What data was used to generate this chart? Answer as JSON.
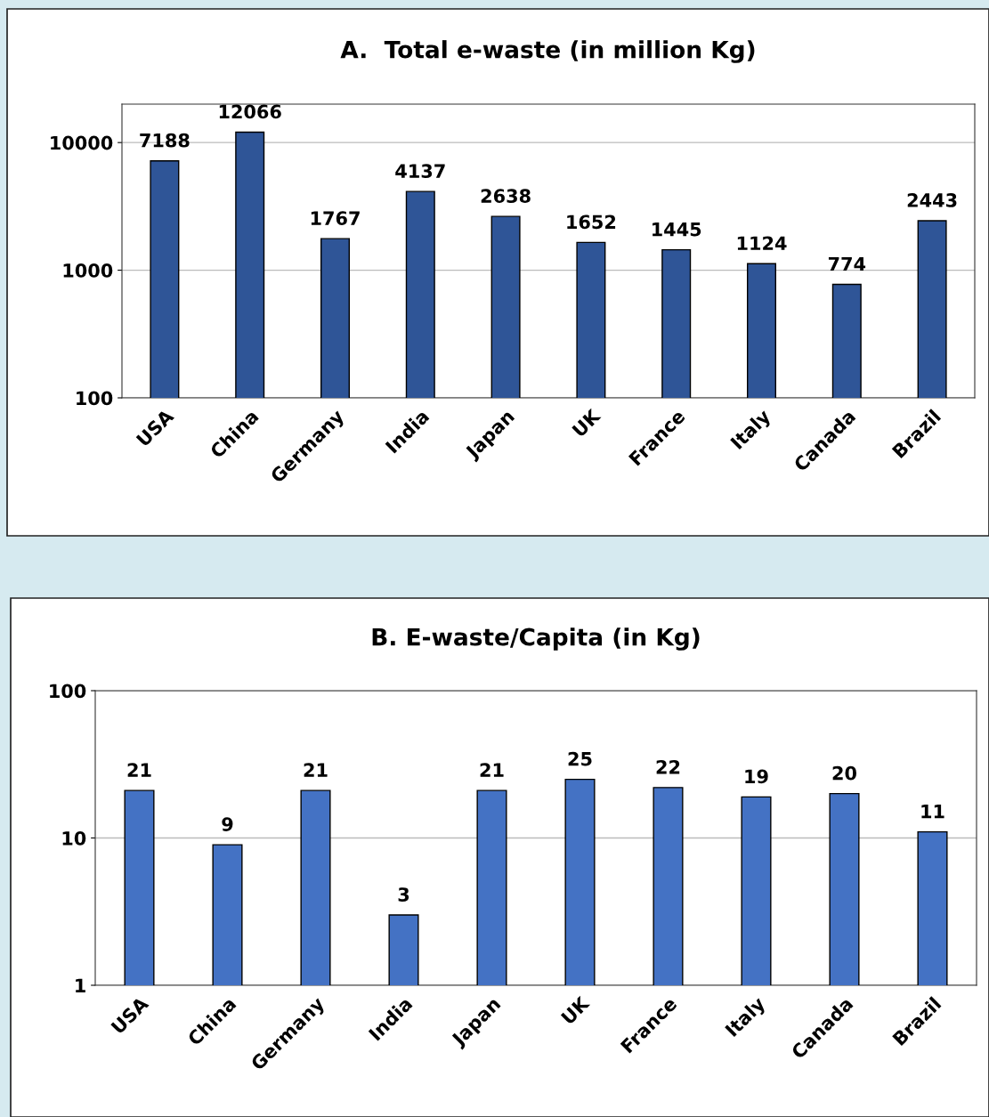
{
  "chart_data": [
    {
      "type": "bar",
      "title": "A.  Total e-waste (in million Kg)",
      "categories": [
        "USA",
        "China",
        "Germany",
        "India",
        "Japan",
        "UK",
        "France",
        "Italy",
        "Canada",
        "Brazil"
      ],
      "values": [
        7188,
        12066,
        1767,
        4137,
        2638,
        1652,
        1445,
        1124,
        774,
        2443
      ],
      "color": "#2f5597",
      "log": "y",
      "ylim": [
        100,
        20000
      ],
      "yticks": [
        100,
        1000,
        10000
      ],
      "grid": "y",
      "data_labels": true
    },
    {
      "type": "bar",
      "title": "B. E-waste/Capita (in Kg)",
      "categories": [
        "USA",
        "China",
        "Germany",
        "India",
        "Japan",
        "UK",
        "France",
        "Italy",
        "Canada",
        "Brazil"
      ],
      "values": [
        21,
        9,
        21,
        3,
        21,
        25,
        22,
        19,
        20,
        11
      ],
      "color": "#4472c4",
      "log": "y",
      "ylim": [
        1,
        100
      ],
      "yticks": [
        1,
        10,
        100
      ],
      "grid": "y",
      "data_labels": true
    }
  ]
}
